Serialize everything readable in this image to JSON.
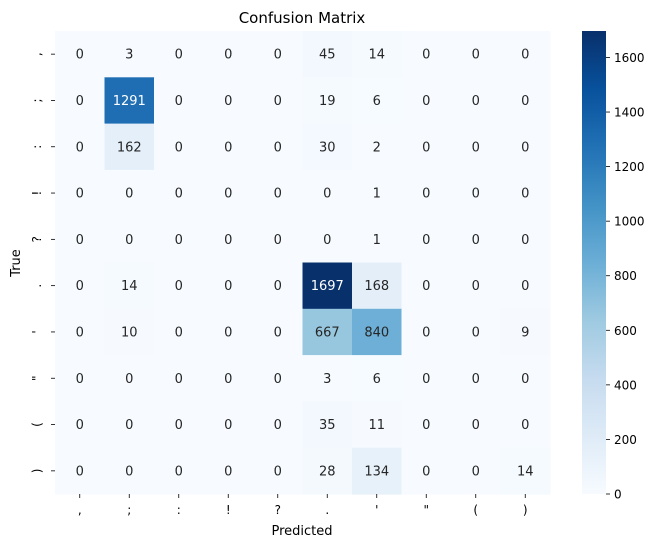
{
  "chart_data": {
    "type": "heatmap",
    "title": "Confusion Matrix",
    "xlabel": "Predicted",
    "ylabel": "True",
    "x_categories": [
      ",",
      ";",
      ":",
      "!",
      "?",
      ".",
      "'",
      "\"",
      "(",
      ")"
    ],
    "y_categories": [
      ",",
      ";",
      ":",
      "!",
      "?",
      ".",
      "'",
      "\"",
      "(",
      ")"
    ],
    "values": [
      [
        0,
        3,
        0,
        0,
        0,
        45,
        14,
        0,
        0,
        0
      ],
      [
        0,
        1291,
        0,
        0,
        0,
        19,
        6,
        0,
        0,
        0
      ],
      [
        0,
        162,
        0,
        0,
        0,
        30,
        2,
        0,
        0,
        0
      ],
      [
        0,
        0,
        0,
        0,
        0,
        0,
        1,
        0,
        0,
        0
      ],
      [
        0,
        0,
        0,
        0,
        0,
        0,
        1,
        0,
        0,
        0
      ],
      [
        0,
        14,
        0,
        0,
        0,
        1697,
        168,
        0,
        0,
        0
      ],
      [
        0,
        10,
        0,
        0,
        0,
        667,
        840,
        0,
        0,
        9
      ],
      [
        0,
        0,
        0,
        0,
        0,
        3,
        6,
        0,
        0,
        0
      ],
      [
        0,
        0,
        0,
        0,
        0,
        35,
        11,
        0,
        0,
        0
      ],
      [
        0,
        0,
        0,
        0,
        0,
        28,
        134,
        0,
        0,
        14
      ]
    ],
    "colormap": "Blues",
    "color_range": [
      0,
      1697
    ],
    "colorbar_ticks": [
      0,
      200,
      400,
      600,
      800,
      1000,
      1200,
      1400,
      1600
    ],
    "annotations": true,
    "grid": false,
    "colors": {
      "low": "#f7fbff",
      "high": "#08306b"
    }
  }
}
